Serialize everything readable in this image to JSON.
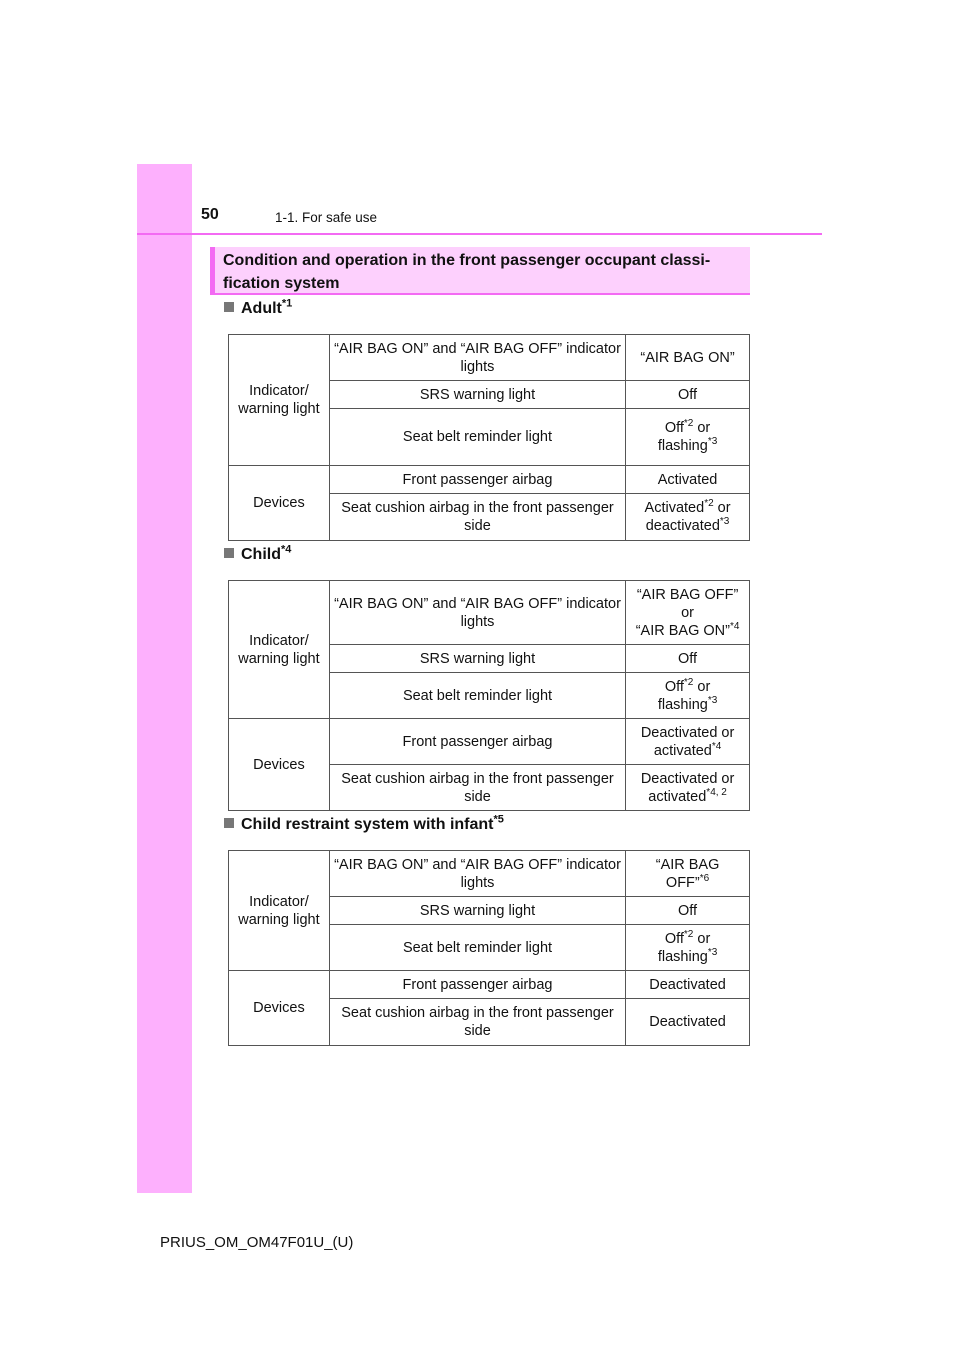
{
  "header": {
    "page_number": "50",
    "section": "1-1. For safe use"
  },
  "title": "Condition and operation in the front passenger occupant classi-fication system",
  "title_lines": [
    "Condition and operation in the front passenger occupant classi-",
    "fication system"
  ],
  "colors": {
    "accent": "#f36af3",
    "sidebar": "#fdb0fd",
    "title_bg": "#fdd0fd"
  },
  "sections": [
    {
      "heading": "Adult",
      "note": "*1",
      "groups": [
        {
          "label": "Indicator/ warning light",
          "rows": [
            {
              "item": "“AIR BAG ON” and “AIR BAG OFF” indicator lights",
              "value": [
                {
                  "t": "“AIR BAG ON”"
                }
              ]
            },
            {
              "item": "SRS warning light",
              "value": [
                {
                  "t": "Off"
                }
              ]
            },
            {
              "item": "Seat belt reminder light",
              "value": [
                {
                  "t": "Off"
                },
                {
                  "s": "*2"
                },
                {
                  "t": " or"
                },
                {
                  "br": 1
                },
                {
                  "t": "flashing"
                },
                {
                  "s": "*3"
                }
              ]
            }
          ]
        },
        {
          "label": "Devices",
          "rows": [
            {
              "item": "Front passenger airbag",
              "value": [
                {
                  "t": "Activated"
                }
              ]
            },
            {
              "item": "Seat cushion airbag in the front passenger side",
              "value": [
                {
                  "t": "Activated"
                },
                {
                  "s": "*2"
                },
                {
                  "t": " or"
                },
                {
                  "br": 1
                },
                {
                  "t": "deactivated"
                },
                {
                  "s": "*3"
                }
              ]
            }
          ]
        }
      ]
    },
    {
      "heading": "Child",
      "note": "*4",
      "groups": [
        {
          "label": "Indicator/ warning light",
          "rows": [
            {
              "item": "“AIR BAG ON” and “AIR BAG OFF” indicator lights",
              "value": [
                {
                  "t": "“AIR BAG OFF”"
                },
                {
                  "br": 1
                },
                {
                  "t": "or"
                },
                {
                  "br": 1
                },
                {
                  "t": "“AIR BAG ON”"
                },
                {
                  "s": "*4"
                }
              ]
            },
            {
              "item": "SRS warning light",
              "value": [
                {
                  "t": "Off"
                }
              ]
            },
            {
              "item": "Seat belt reminder light",
              "value": [
                {
                  "t": "Off"
                },
                {
                  "s": "*2"
                },
                {
                  "t": " or"
                },
                {
                  "br": 1
                },
                {
                  "t": "flashing"
                },
                {
                  "s": "*3"
                }
              ]
            }
          ]
        },
        {
          "label": "Devices",
          "rows": [
            {
              "item": "Front passenger airbag",
              "value": [
                {
                  "t": "Deactivated or"
                },
                {
                  "br": 1
                },
                {
                  "t": "activated"
                },
                {
                  "s": "*4"
                }
              ]
            },
            {
              "item": "Seat cushion airbag in the front passenger side",
              "value": [
                {
                  "t": "Deactivated or"
                },
                {
                  "br": 1
                },
                {
                  "t": "activated"
                },
                {
                  "s": "*4, 2"
                }
              ]
            }
          ]
        }
      ]
    },
    {
      "heading": "Child restraint system with infant",
      "note": "*5",
      "groups": [
        {
          "label": "Indicator/ warning light",
          "rows": [
            {
              "item": "“AIR BAG ON” and “AIR BAG OFF” indicator lights",
              "value": [
                {
                  "t": "“AIR BAG"
                },
                {
                  "br": 1
                },
                {
                  "t": "OFF”"
                },
                {
                  "s": "*6"
                }
              ]
            },
            {
              "item": "SRS warning light",
              "value": [
                {
                  "t": "Off"
                }
              ]
            },
            {
              "item": "Seat belt reminder light",
              "value": [
                {
                  "t": "Off"
                },
                {
                  "s": "*2"
                },
                {
                  "t": " or"
                },
                {
                  "br": 1
                },
                {
                  "t": "flashing"
                },
                {
                  "s": "*3"
                }
              ]
            }
          ]
        },
        {
          "label": "Devices",
          "rows": [
            {
              "item": "Front passenger airbag",
              "value": [
                {
                  "t": "Deactivated"
                }
              ]
            },
            {
              "item": "Seat cushion airbag in the front passenger side",
              "value": [
                {
                  "t": "Deactivated"
                }
              ]
            }
          ]
        }
      ]
    }
  ],
  "footer": "PRIUS_OM_OM47F01U_(U)"
}
